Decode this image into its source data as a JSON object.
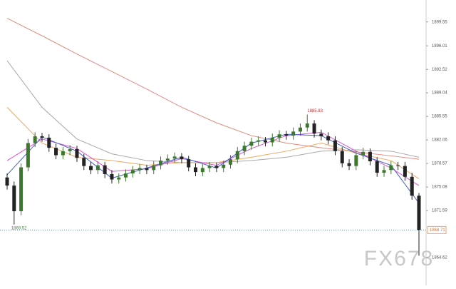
{
  "chart_data": {
    "type": "candlestick",
    "ylim": [
      1860.5,
      1902.8
    ],
    "yticks": [
      1864.62,
      1871.59,
      1875.08,
      1878.57,
      1882.06,
      1885.55,
      1889.04,
      1892.52,
      1896.01,
      1899.55
    ],
    "up_color": "#3a7a2a",
    "down_color": "#222222",
    "open": [
      1876.5,
      1875.3,
      1871.5,
      1878.0,
      1881.6,
      1882.6,
      1882.4,
      1880.9,
      1879.8,
      1880.4,
      1880.7,
      1879.4,
      1878.2,
      1877.6,
      1878.3,
      1877.0,
      1876.2,
      1876.5,
      1877.1,
      1877.6,
      1877.9,
      1877.6,
      1878.3,
      1879.0,
      1879.3,
      1879.6,
      1879.2,
      1878.0,
      1877.3,
      1877.9,
      1878.2,
      1877.9,
      1878.4,
      1879.2,
      1880.4,
      1881.2,
      1881.8,
      1882.0,
      1881.7,
      1882.4,
      1882.9,
      1882.7,
      1883.3,
      1883.9,
      1884.5,
      1883.0,
      1882.6,
      1882.0,
      1880.4,
      1878.6,
      1878.2,
      1879.8,
      1880.3,
      1878.9,
      1877.2,
      1877.6,
      1878.3,
      1878.2,
      1876.6,
      1873.8
    ],
    "high": [
      1877.1,
      1875.9,
      1878.6,
      1882.2,
      1883.2,
      1883.1,
      1882.9,
      1881.5,
      1881.0,
      1881.3,
      1881.2,
      1880.0,
      1878.8,
      1878.9,
      1878.8,
      1877.6,
      1877.1,
      1877.7,
      1878.2,
      1878.5,
      1878.4,
      1878.9,
      1879.6,
      1879.9,
      1880.2,
      1880.1,
      1879.7,
      1878.6,
      1878.5,
      1878.8,
      1878.7,
      1879.0,
      1879.8,
      1881.0,
      1881.8,
      1882.4,
      1882.6,
      1882.5,
      1883.0,
      1883.5,
      1883.4,
      1883.9,
      1884.5,
      1885.83,
      1885.0,
      1883.6,
      1883.2,
      1882.6,
      1881.0,
      1879.2,
      1880.4,
      1880.9,
      1880.8,
      1879.5,
      1878.2,
      1878.9,
      1878.8,
      1878.8,
      1877.2,
      1874.2
    ],
    "low": [
      1874.7,
      1869.52,
      1870.9,
      1877.4,
      1881.0,
      1881.8,
      1880.3,
      1879.2,
      1879.2,
      1879.8,
      1878.8,
      1877.6,
      1877.0,
      1877.0,
      1876.4,
      1875.6,
      1875.6,
      1875.9,
      1876.5,
      1877.0,
      1877.0,
      1877.0,
      1877.7,
      1878.4,
      1878.7,
      1878.6,
      1877.4,
      1876.7,
      1876.7,
      1877.3,
      1877.3,
      1877.3,
      1877.8,
      1878.6,
      1879.8,
      1880.6,
      1881.2,
      1881.1,
      1881.1,
      1881.8,
      1882.1,
      1882.1,
      1882.7,
      1883.3,
      1882.4,
      1882.0,
      1881.4,
      1879.8,
      1878.0,
      1877.6,
      1877.6,
      1879.2,
      1878.3,
      1876.6,
      1876.6,
      1877.0,
      1877.6,
      1876.0,
      1873.2,
      1864.9
    ],
    "close": [
      1875.3,
      1871.5,
      1878.0,
      1881.6,
      1882.6,
      1882.4,
      1880.9,
      1879.8,
      1880.4,
      1880.7,
      1879.4,
      1878.2,
      1877.6,
      1878.3,
      1877.0,
      1876.2,
      1876.5,
      1877.1,
      1877.6,
      1877.9,
      1877.6,
      1878.3,
      1879.0,
      1879.3,
      1879.6,
      1879.2,
      1878.0,
      1877.3,
      1877.9,
      1878.2,
      1877.9,
      1878.4,
      1879.2,
      1880.4,
      1881.2,
      1881.8,
      1882.0,
      1881.7,
      1882.4,
      1882.9,
      1882.7,
      1883.3,
      1883.9,
      1884.5,
      1883.0,
      1882.6,
      1882.0,
      1880.4,
      1878.6,
      1878.2,
      1879.8,
      1880.3,
      1878.9,
      1877.2,
      1877.6,
      1878.3,
      1878.2,
      1876.6,
      1873.8,
      1868.71
    ],
    "lines": [
      {
        "color": "#e08a80",
        "x": [
          0,
          5,
          10,
          15,
          20,
          25,
          30,
          35,
          40,
          45,
          50,
          55,
          59
        ],
        "values": [
          1900.1,
          1897.5,
          1894.8,
          1892.2,
          1889.6,
          1886.9,
          1884.6,
          1882.7,
          1881.6,
          1880.9,
          1880.3,
          1879.7,
          1879.2
        ]
      },
      {
        "color": "#a8a8a8",
        "x": [
          0,
          5,
          10,
          15,
          20,
          25,
          30,
          35,
          40,
          45,
          50,
          55,
          59
        ],
        "values": [
          1893.8,
          1886.9,
          1882.2,
          1880.0,
          1879.0,
          1878.7,
          1878.7,
          1879.0,
          1879.5,
          1880.4,
          1880.6,
          1880.4,
          1879.5
        ]
      },
      {
        "color": "#f0a860",
        "x": [
          0,
          5,
          10,
          15,
          20,
          25,
          30,
          35,
          40,
          45,
          50,
          55,
          59
        ],
        "values": [
          1886.9,
          1881.6,
          1879.5,
          1879.0,
          1878.3,
          1878.7,
          1878.7,
          1879.5,
          1880.4,
          1881.6,
          1880.1,
          1879.0,
          1876.3
        ]
      },
      {
        "color": "#e050d8",
        "x": [
          0,
          5,
          10,
          15,
          20,
          25,
          30,
          35,
          40,
          45,
          50,
          55,
          59
        ],
        "values": [
          1879.0,
          1882.2,
          1880.8,
          1877.4,
          1877.8,
          1879.3,
          1878.3,
          1880.8,
          1882.7,
          1883.2,
          1880.4,
          1877.9,
          1875.3
        ]
      },
      {
        "color": "#4060c8",
        "x": [
          0,
          5,
          10,
          15,
          20,
          25,
          30,
          35,
          40,
          45,
          50,
          55,
          59
        ],
        "values": [
          1876.9,
          1882.5,
          1880.4,
          1876.4,
          1877.9,
          1879.5,
          1877.9,
          1881.6,
          1882.9,
          1882.7,
          1880.1,
          1878.3,
          1872.7
        ]
      }
    ],
    "watermark": "FX678"
  }
}
